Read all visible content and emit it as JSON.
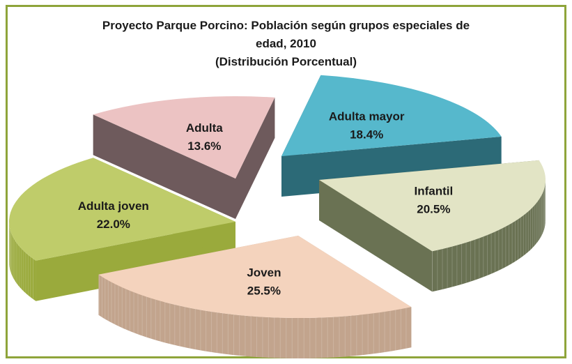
{
  "chart_data": {
    "type": "pie",
    "title_lines": [
      "Proyecto Parque Porcino: Población según grupos especiales de",
      "edad, 2010",
      "(Distribución Porcentual)"
    ],
    "slices": [
      {
        "label": "Adulta mayor",
        "value": 18.4,
        "display": "18.4%",
        "top_color": "#56b8cc",
        "side_color": "#2c6a77"
      },
      {
        "label": "Infantil",
        "value": 20.5,
        "display": "20.5%",
        "top_color": "#e2e4c5",
        "side_color": "#6a7253"
      },
      {
        "label": "Joven",
        "value": 25.5,
        "display": "25.5%",
        "top_color": "#f4d3bd",
        "side_color": "#c2a48d"
      },
      {
        "label": "Adulta joven",
        "value": 22.0,
        "display": "22.0%",
        "top_color": "#bfcc6a",
        "side_color": "#9aaa3c"
      },
      {
        "label": "Adulta",
        "value": 13.6,
        "display": "13.6%",
        "top_color": "#ecc3c3",
        "side_color": "#6e5a5c"
      }
    ],
    "frame_color": "#8ea43a"
  }
}
